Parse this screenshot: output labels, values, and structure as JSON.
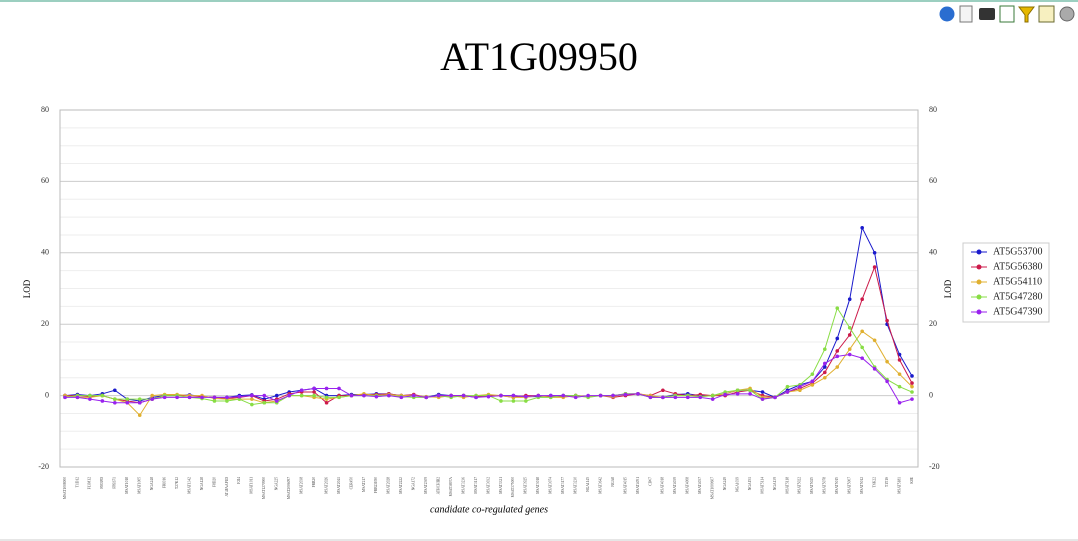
{
  "chart_data": {
    "type": "line",
    "title": "AT1G09950",
    "xlabel": "candidate co-regulated genes",
    "ylabel": "LOD",
    "categories": [
      "MSAT1008000",
      "T1D12",
      "F13M12",
      "FM3PD",
      "FPE671",
      "MSAT1018",
      "MSAT1005",
      "NGA248",
      "FRI016",
      "T27K12",
      "MSAT1342",
      "NGA128",
      "F8D20",
      "AT4FAAP1D",
      "F2I4",
      "MSAT1011",
      "MSAT1270900",
      "NGA225",
      "MSAT2006097",
      "MSAT2038",
      "FRB20",
      "MSAT2026",
      "MSAT2041",
      "CER450",
      "MSAT217",
      "FRB23E90",
      "MSAT2028",
      "MSAT2222",
      "NGA172",
      "MSAT2309",
      "ATHCHIB2",
      "MSAT3807A",
      "MSAT3236",
      "MSAT3117",
      "MSAT3032",
      "MSAT3321",
      "MSAT375000",
      "MSAT3925",
      "MSAT3018",
      "MSAT3074",
      "MSAT3177",
      "MSAT3230",
      "NGA1145",
      "MSAT3642",
      "NGA8",
      "MSAT4015",
      "MSAT4051",
      "CIW7",
      "MSAT4018",
      "MSAT4039",
      "MSAT4008",
      "MSAT4037",
      "MSAT1000607",
      "NGA249",
      "NGA1039",
      "NGA151",
      "MSAT5114",
      "NGA139",
      "MSAT5118",
      "MSAT5022",
      "MSAT5025",
      "MSAT5078",
      "MSAT5015",
      "MSAT5007",
      "MSAT5012",
      "T6K22",
      "T1T1S",
      "MSAT5181",
      "K8E"
    ],
    "series": [
      {
        "name": "AT5G53700",
        "color": "#1a1acc",
        "values": [
          0,
          0.3,
          0,
          0.5,
          1.5,
          -1,
          -1.5,
          -0.5,
          0,
          0,
          0.2,
          -0.3,
          -0.5,
          -0.5,
          0,
          0.2,
          -1,
          0,
          1,
          1.5,
          2,
          0,
          0,
          0.3,
          0.3,
          0.5,
          0.5,
          0,
          0.2,
          -0.5,
          0.3,
          0,
          0,
          -0.5,
          0,
          0,
          0,
          -0.3,
          -0.3,
          0,
          0,
          0,
          -0.2,
          0,
          0,
          0.5,
          0.5,
          -0.3,
          -0.5,
          0.3,
          0.5,
          0,
          0,
          0.5,
          1.5,
          1.5,
          1,
          -0.5,
          1.5,
          3,
          4,
          8,
          16,
          27,
          47,
          40,
          20,
          11.5,
          5.5
        ]
      },
      {
        "name": "AT5G56380",
        "color": "#cc1a4a",
        "values": [
          0,
          0,
          -0.3,
          0,
          -1,
          -1.5,
          -2,
          -1,
          0,
          0,
          0,
          -0.3,
          -0.5,
          -0.8,
          -0.5,
          0,
          -1.5,
          -1,
          0.5,
          1,
          1,
          -2,
          0,
          0,
          0.3,
          0.3,
          0.5,
          0,
          0.3,
          -0.5,
          0,
          0,
          0,
          -0.3,
          0,
          0,
          -0.5,
          0,
          0,
          -0.3,
          -0.3,
          0,
          -0.3,
          0,
          -0.5,
          0,
          0.5,
          0,
          1.5,
          0.5,
          0,
          0.3,
          0,
          0,
          1,
          1.5,
          0,
          -0.5,
          1,
          2,
          3.5,
          6.5,
          12.5,
          17,
          27,
          36,
          21,
          10,
          3.5
        ]
      },
      {
        "name": "AT5G54110",
        "color": "#e0b030",
        "values": [
          0,
          -0.5,
          -0.5,
          0,
          -1,
          -2,
          -5.5,
          0,
          0.3,
          0.3,
          0,
          0,
          -0.8,
          -1,
          -1,
          -1,
          -2,
          -1.5,
          0,
          0,
          -0.5,
          -1,
          -0.5,
          0,
          0.5,
          0,
          0.3,
          0,
          0,
          -0.3,
          -0.5,
          0,
          -0.5,
          0,
          0.3,
          0,
          -0.5,
          -0.5,
          0,
          -0.5,
          -0.5,
          0,
          -0.3,
          0,
          -0.3,
          0.5,
          0.5,
          0,
          -0.5,
          0,
          0,
          -0.3,
          0,
          0.5,
          1.5,
          2,
          -0.5,
          -0.5,
          1,
          1.5,
          3,
          5,
          8,
          13,
          18,
          15.5,
          9.5,
          6,
          2.5
        ]
      },
      {
        "name": "AT5G47280",
        "color": "#88dd44",
        "values": [
          -0.5,
          0,
          0,
          0,
          -1,
          -1,
          -1,
          -1,
          0,
          0,
          -0.5,
          -0.8,
          -1.5,
          -1.5,
          -1,
          -2.5,
          -2,
          -2,
          0,
          0,
          0,
          -0.5,
          -0.5,
          0,
          0,
          0,
          0,
          -0.3,
          -0.5,
          -0.5,
          0,
          -0.5,
          0,
          0,
          0,
          -1.5,
          -1.5,
          -1.5,
          -0.5,
          -0.5,
          0,
          0,
          -0.5,
          0,
          0,
          0.5,
          0.5,
          -0.5,
          -0.5,
          0,
          0,
          -0.3,
          0,
          1,
          1.5,
          1.5,
          -1,
          -0.5,
          2.5,
          3,
          6,
          13,
          24.5,
          19,
          13.5,
          8,
          4.5,
          2.5,
          1
        ]
      },
      {
        "name": "AT5G47390",
        "color": "#9922ee",
        "values": [
          -0.5,
          -0.5,
          -1,
          -1.5,
          -2,
          -2,
          -2,
          -1,
          -0.5,
          -0.5,
          -0.5,
          -0.5,
          -0.5,
          -0.5,
          -0.3,
          0,
          0,
          -1.5,
          0,
          1.5,
          2,
          2,
          2,
          0,
          0,
          -0.3,
          0,
          -0.5,
          0,
          -0.5,
          0,
          0,
          0,
          -0.5,
          -0.3,
          0,
          0,
          -0.3,
          0,
          0,
          0,
          -0.5,
          0,
          0,
          0,
          0.3,
          0.5,
          -0.5,
          -0.5,
          -0.5,
          -0.5,
          -0.5,
          -1,
          0.3,
          0.5,
          0.5,
          -1,
          -0.5,
          1,
          2.5,
          4,
          9,
          11,
          11.5,
          10.5,
          7.5,
          4,
          -2,
          -1
        ]
      }
    ],
    "ylim": [
      -20,
      80
    ],
    "yticks": [
      -20,
      0,
      20,
      40,
      60,
      80
    ],
    "grid": true,
    "legend": "right"
  }
}
